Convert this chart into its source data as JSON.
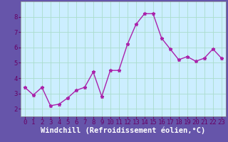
{
  "x": [
    0,
    1,
    2,
    3,
    4,
    5,
    6,
    7,
    8,
    9,
    10,
    11,
    12,
    13,
    14,
    15,
    16,
    17,
    18,
    19,
    20,
    21,
    22,
    23
  ],
  "y": [
    3.4,
    2.9,
    3.4,
    2.2,
    2.3,
    2.7,
    3.2,
    3.4,
    4.4,
    2.8,
    4.5,
    4.5,
    6.2,
    7.5,
    8.2,
    8.2,
    6.6,
    5.9,
    5.2,
    5.4,
    5.1,
    5.3,
    5.9,
    5.3
  ],
  "line_color": "#aa22aa",
  "marker": "*",
  "bg_color": "#bbeedd",
  "plot_bg": "#cceeff",
  "grid_color": "#aaddcc",
  "outer_bg": "#6655aa",
  "xlabel": "Windchill (Refroidissement éolien,°C)",
  "ylim": [
    1.5,
    9.0
  ],
  "xlim": [
    -0.5,
    23.5
  ],
  "yticks": [
    2,
    3,
    4,
    5,
    6,
    7,
    8
  ],
  "xticks": [
    0,
    1,
    2,
    3,
    4,
    5,
    6,
    7,
    8,
    9,
    10,
    11,
    12,
    13,
    14,
    15,
    16,
    17,
    18,
    19,
    20,
    21,
    22,
    23
  ],
  "tick_label_fontsize": 6.5,
  "xlabel_fontsize": 7.5,
  "line_width": 1.0,
  "marker_size": 3.5
}
